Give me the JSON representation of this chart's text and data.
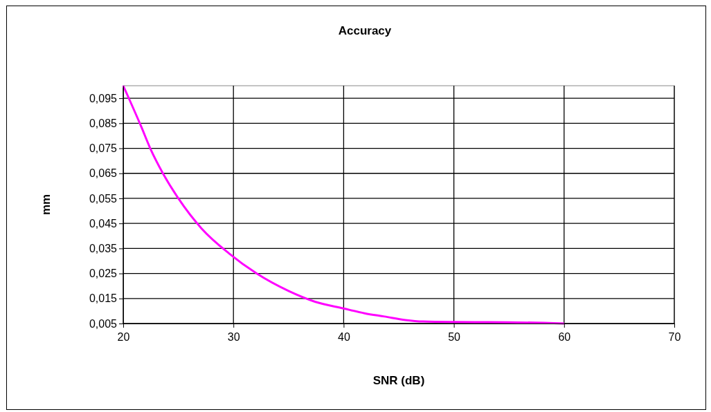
{
  "chart_data": {
    "type": "line",
    "title": "Accuracy",
    "xlabel": "SNR (dB)",
    "ylabel": "mm",
    "xlim": [
      20,
      70
    ],
    "xticks": [
      20,
      30,
      40,
      50,
      60,
      70
    ],
    "ylim": [
      0.005,
      0.1
    ],
    "yticks": [
      {
        "value": 0.005,
        "label": "0,005"
      },
      {
        "value": 0.015,
        "label": "0,015"
      },
      {
        "value": 0.025,
        "label": "0,025"
      },
      {
        "value": 0.035,
        "label": "0,035"
      },
      {
        "value": 0.045,
        "label": "0,045"
      },
      {
        "value": 0.055,
        "label": "0,055"
      },
      {
        "value": 0.065,
        "label": "0,065"
      },
      {
        "value": 0.075,
        "label": "0,075"
      },
      {
        "value": 0.085,
        "label": "0,085"
      },
      {
        "value": 0.095,
        "label": "0,095"
      }
    ],
    "grid": true,
    "series": [
      {
        "color": "#ff00ff",
        "x": [
          20,
          21.6,
          22.5,
          23.6,
          25,
          27.1,
          29.6,
          32.1,
          35,
          37.4,
          40,
          41.9,
          43.7,
          45.6,
          47.2,
          50,
          55,
          60
        ],
        "values": [
          0.1,
          0.084,
          0.0745,
          0.065,
          0.055,
          0.043,
          0.033,
          0.025,
          0.018,
          0.0137,
          0.011,
          0.0091,
          0.0078,
          0.0064,
          0.0058,
          0.0056,
          0.0055,
          0.005
        ]
      }
    ]
  }
}
